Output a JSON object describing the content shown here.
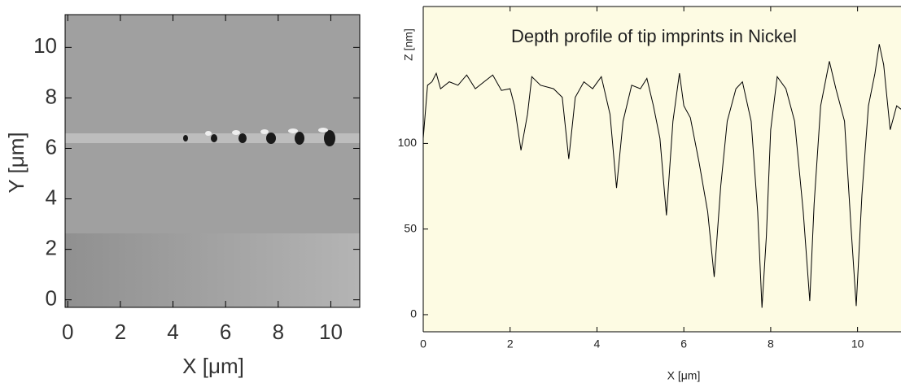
{
  "chart_data": [
    {
      "type": "image",
      "x_label": "X [μm]",
      "y_label": "Y [μm]",
      "xlim": [
        -0.1,
        11.1
      ],
      "ylim": [
        -0.3,
        11.3
      ],
      "xticks": [
        0,
        2,
        4,
        6,
        8,
        10
      ],
      "yticks": [
        0,
        2,
        4,
        6,
        8,
        10
      ]
    },
    {
      "type": "line",
      "title": "Depth profile of tip imprints in Nickel",
      "x_label": "X [μm]",
      "y_label": "Z [nm]",
      "background": "#fdfbe3",
      "color": "#000000",
      "xlim": [
        0,
        11
      ],
      "ylim": [
        -10,
        180
      ],
      "xticks": [
        0,
        2,
        4,
        6,
        8,
        10
      ],
      "yticks": [
        0,
        50,
        100
      ],
      "x": [
        0,
        0.1,
        0.2,
        0.3,
        0.4,
        0.6,
        0.8,
        1.0,
        1.2,
        1.4,
        1.6,
        1.8,
        2.0,
        2.1,
        2.25,
        2.4,
        2.5,
        2.7,
        3.0,
        3.2,
        3.35,
        3.5,
        3.7,
        3.9,
        4.1,
        4.3,
        4.45,
        4.6,
        4.8,
        5.0,
        5.15,
        5.3,
        5.45,
        5.6,
        5.75,
        5.9,
        6.0,
        6.15,
        6.35,
        6.55,
        6.7,
        6.85,
        7.0,
        7.2,
        7.35,
        7.55,
        7.7,
        7.8,
        7.9,
        8.0,
        8.15,
        8.35,
        8.55,
        8.75,
        8.9,
        9.0,
        9.15,
        9.35,
        9.5,
        9.7,
        9.85,
        9.97,
        10.1,
        10.25,
        10.4,
        10.5,
        10.6,
        10.75,
        10.9,
        11.0
      ],
      "values": [
        103,
        134,
        136,
        141,
        132,
        136,
        134,
        140,
        132,
        136,
        140,
        131,
        132,
        122,
        96,
        117,
        139,
        134,
        132,
        127,
        91,
        127,
        136,
        132,
        139,
        117,
        74,
        113,
        134,
        132,
        138,
        122,
        103,
        58,
        113,
        141,
        122,
        115,
        89,
        60,
        22,
        75,
        113,
        132,
        136,
        113,
        60,
        4,
        46,
        108,
        139,
        132,
        113,
        60,
        8,
        65,
        122,
        148,
        132,
        113,
        51,
        5,
        70,
        122,
        141,
        158,
        146,
        108,
        122,
        120
      ]
    }
  ]
}
